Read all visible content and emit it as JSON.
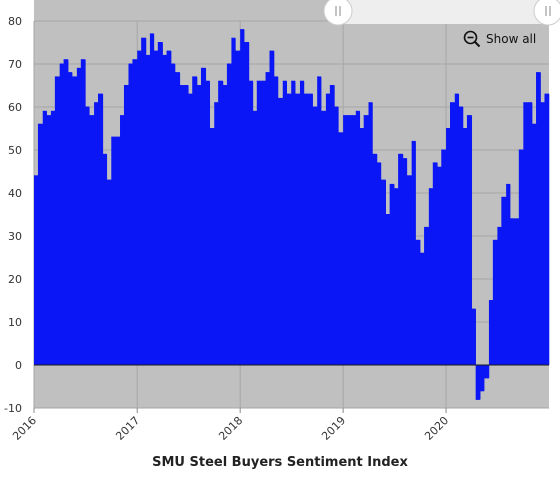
{
  "controls": {
    "show_all_label": "Show all",
    "zoom_icon": "zoom-out-icon",
    "handle_icon": "grip-icon"
  },
  "colors": {
    "series": "#0a16f5",
    "plot_background": "#c0c0c0",
    "navigator_track": "#eeeeee"
  },
  "chart_data": {
    "type": "area",
    "title": "",
    "xlabel": "SMU Steel Buyers Sentiment Index",
    "ylabel": "",
    "ylim": [
      -10,
      80
    ],
    "yticks": [
      -10,
      0,
      10,
      20,
      30,
      40,
      50,
      60,
      70,
      80
    ],
    "xlim": [
      "2016-01",
      "2020-12"
    ],
    "xticks": [
      "2016",
      "2017",
      "2018",
      "2019",
      "2020"
    ],
    "grid": true,
    "legend": "none",
    "step": true,
    "series": [
      {
        "name": "",
        "dates": [
          "2016-01-01",
          "2016-01-15",
          "2016-02-01",
          "2016-02-15",
          "2016-03-01",
          "2016-03-15",
          "2016-04-01",
          "2016-04-15",
          "2016-05-01",
          "2016-05-15",
          "2016-06-01",
          "2016-06-15",
          "2016-07-01",
          "2016-07-15",
          "2016-08-01",
          "2016-08-15",
          "2016-09-01",
          "2016-09-15",
          "2016-10-01",
          "2016-10-15",
          "2016-11-01",
          "2016-11-15",
          "2016-12-01",
          "2016-12-15",
          "2017-01-01",
          "2017-01-15",
          "2017-02-01",
          "2017-02-15",
          "2017-03-01",
          "2017-03-15",
          "2017-04-01",
          "2017-04-15",
          "2017-05-01",
          "2017-05-15",
          "2017-06-01",
          "2017-06-15",
          "2017-07-01",
          "2017-07-15",
          "2017-08-01",
          "2017-08-15",
          "2017-09-01",
          "2017-09-15",
          "2017-10-01",
          "2017-10-15",
          "2017-11-01",
          "2017-11-15",
          "2017-12-01",
          "2017-12-15",
          "2018-01-01",
          "2018-01-15",
          "2018-02-01",
          "2018-02-15",
          "2018-03-01",
          "2018-03-15",
          "2018-04-01",
          "2018-04-15",
          "2018-05-01",
          "2018-05-15",
          "2018-06-01",
          "2018-06-15",
          "2018-07-01",
          "2018-07-15",
          "2018-08-01",
          "2018-08-15",
          "2018-09-01",
          "2018-09-15",
          "2018-10-01",
          "2018-10-15",
          "2018-11-01",
          "2018-11-15",
          "2018-12-01",
          "2018-12-15",
          "2019-01-01",
          "2019-01-15",
          "2019-02-01",
          "2019-02-15",
          "2019-03-01",
          "2019-03-15",
          "2019-04-01",
          "2019-04-15",
          "2019-05-01",
          "2019-05-15",
          "2019-06-01",
          "2019-06-15",
          "2019-07-01",
          "2019-07-15",
          "2019-08-01",
          "2019-08-15",
          "2019-09-01",
          "2019-09-15",
          "2019-10-01",
          "2019-10-15",
          "2019-11-01",
          "2019-11-15",
          "2019-12-01",
          "2019-12-15",
          "2020-01-01",
          "2020-01-15",
          "2020-02-01",
          "2020-02-15",
          "2020-03-01",
          "2020-03-15",
          "2020-04-01",
          "2020-04-15",
          "2020-05-01",
          "2020-05-15",
          "2020-06-01",
          "2020-06-15",
          "2020-07-01",
          "2020-07-15",
          "2020-08-01",
          "2020-08-15",
          "2020-09-01",
          "2020-09-15",
          "2020-10-01",
          "2020-10-15",
          "2020-11-01",
          "2020-11-15",
          "2020-12-01",
          "2020-12-15"
        ],
        "values": [
          44,
          56,
          59,
          58,
          59,
          67,
          70,
          71,
          68,
          67,
          69,
          71,
          60,
          58,
          61,
          63,
          49,
          43,
          53,
          53,
          58,
          65,
          70,
          71,
          73,
          76,
          72,
          77,
          73,
          75,
          72,
          73,
          70,
          68,
          65,
          65,
          63,
          67,
          65,
          69,
          66,
          55,
          61,
          66,
          65,
          70,
          76,
          73,
          78,
          75,
          66,
          59,
          66,
          66,
          68,
          73,
          67,
          62,
          66,
          63,
          66,
          63,
          66,
          63,
          63,
          60,
          67,
          59,
          63,
          65,
          60,
          54,
          58,
          58,
          58,
          59,
          55,
          58,
          61,
          49,
          47,
          43,
          35,
          42,
          41,
          49,
          48,
          44,
          52,
          29,
          26,
          32,
          41,
          47,
          46,
          50,
          55,
          61,
          63,
          60,
          55,
          58,
          13,
          -8,
          -6,
          -3,
          15,
          29,
          32,
          39,
          42,
          34,
          34,
          50,
          61,
          61,
          56,
          68,
          61,
          63
        ]
      }
    ]
  }
}
